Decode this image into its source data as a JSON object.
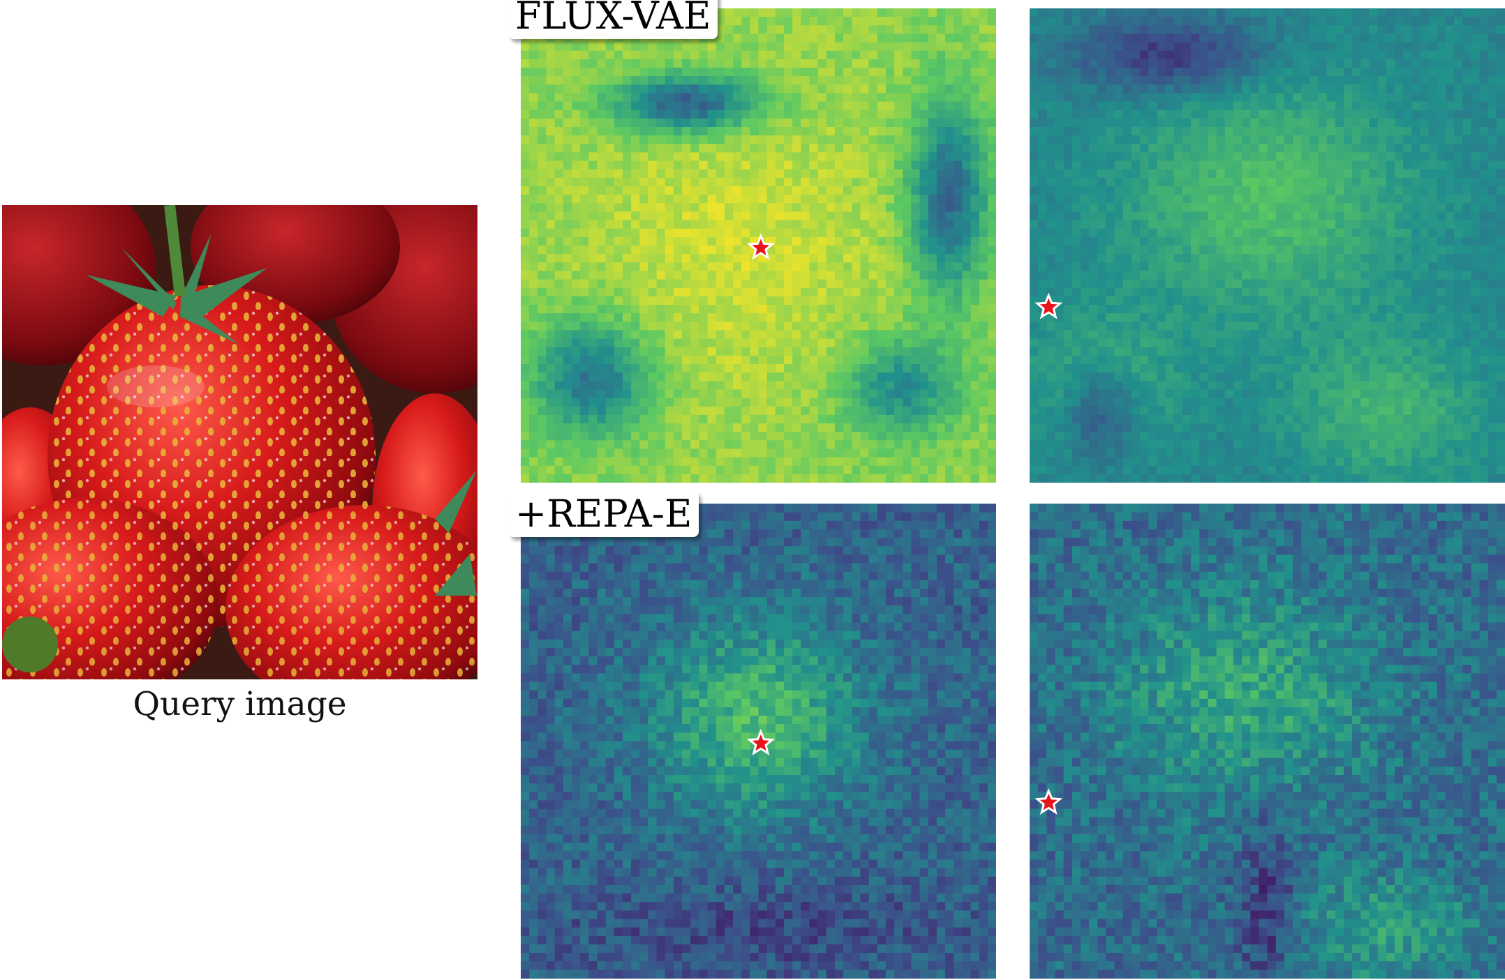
{
  "figure": {
    "query_caption": "Query image",
    "row_labels": [
      "FLUX-VAE",
      "+REPA-E"
    ]
  },
  "colors": {
    "star_fill": "#e8141b",
    "star_stroke": "#ffffff",
    "viridis": [
      "#440154",
      "#3b528b",
      "#21918c",
      "#5ec962",
      "#fde725"
    ]
  },
  "icons": [
    "strawberry-photo",
    "similarity-heatmap",
    "star-marker-icon"
  ]
}
